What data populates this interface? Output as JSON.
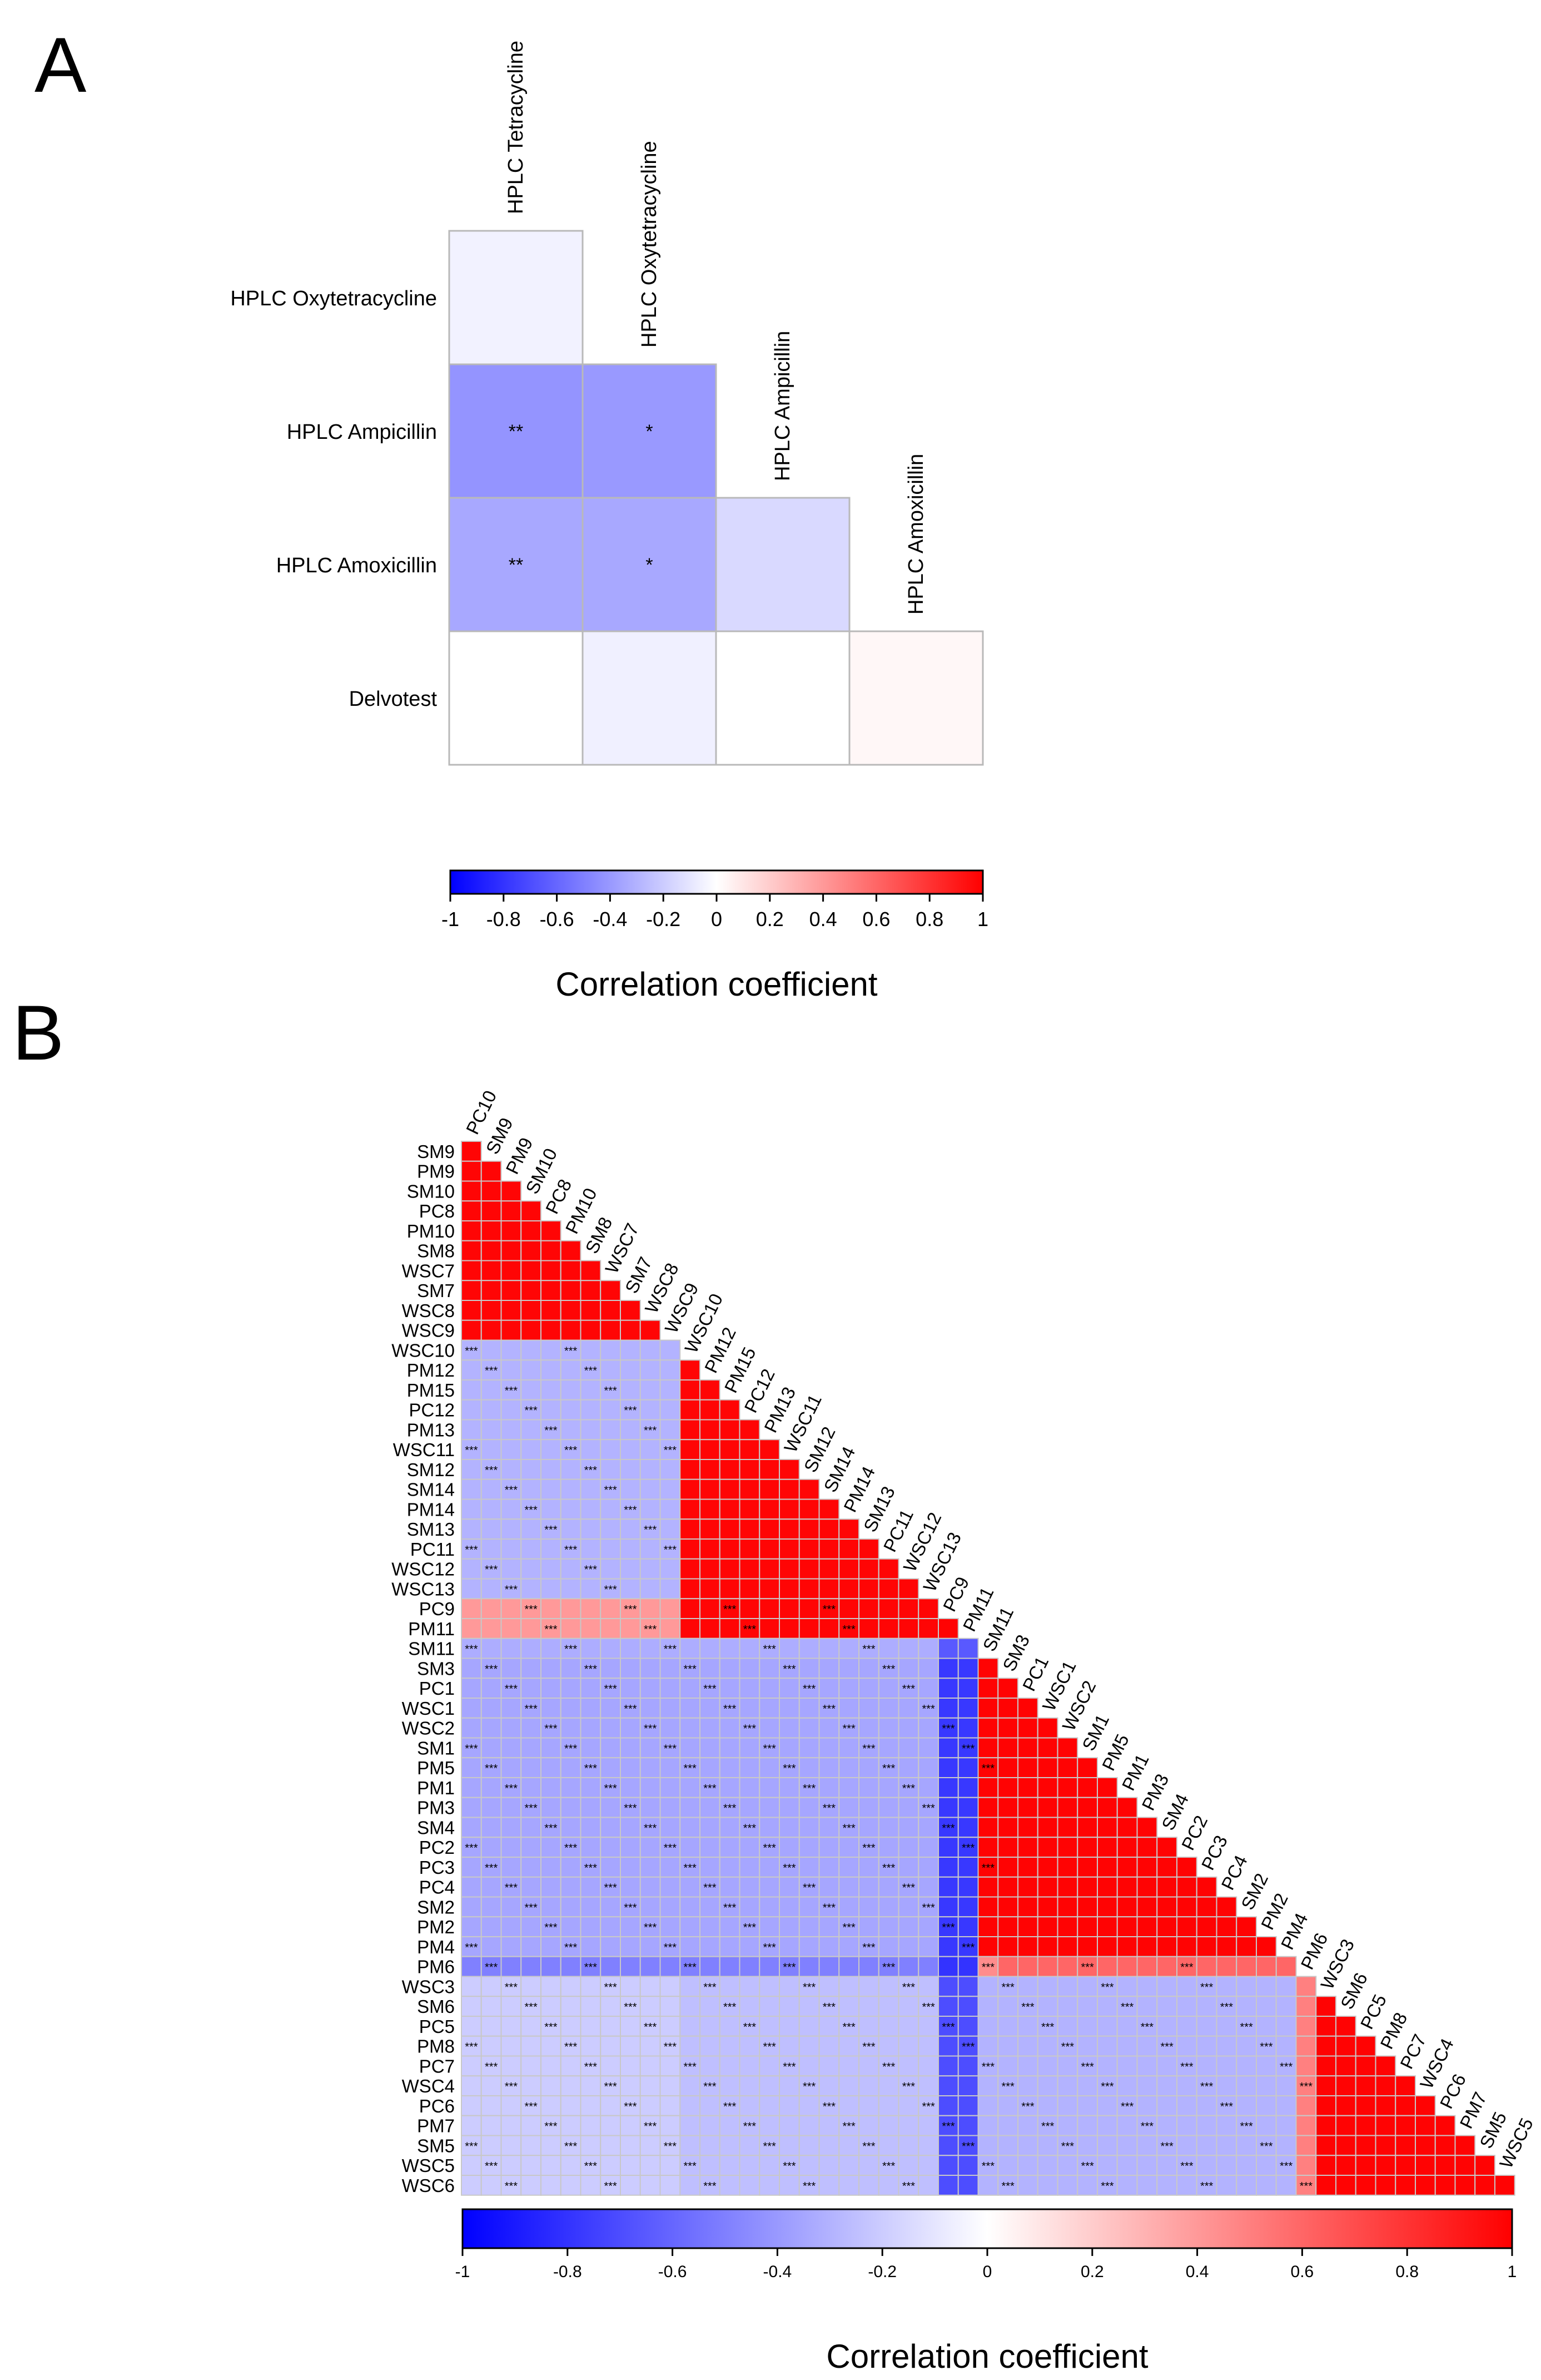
{
  "panels": {
    "a": {
      "letter": "A"
    },
    "b": {
      "letter": "B"
    }
  },
  "colors": {
    "negative": "#0000ff",
    "neutral": "#ffffff",
    "positive": "#ff0000",
    "grid": "#c8c8c8"
  },
  "chart_data": [
    {
      "type": "heatmap",
      "panel": "A",
      "title": "",
      "col_labels": [
        "HPLC Tetracycline",
        "HPLC Oxytetracycline",
        "HPLC Ampicillin",
        "HPLC Amoxicillin"
      ],
      "row_labels": [
        "HPLC Oxytetracycline",
        "HPLC Ampicillin",
        "HPLC Amoxicillin",
        "Delvotest"
      ],
      "values": [
        [
          -0.05,
          null,
          null,
          null
        ],
        [
          -0.42,
          -0.4,
          null,
          null
        ],
        [
          -0.34,
          -0.34,
          -0.15,
          null
        ],
        [
          0.0,
          -0.06,
          0.0,
          0.03
        ]
      ],
      "stars": [
        [
          "",
          "",
          "",
          ""
        ],
        [
          "**",
          "*",
          "",
          ""
        ],
        [
          "**",
          "*",
          "",
          ""
        ],
        [
          "",
          "",
          "",
          ""
        ]
      ],
      "colorbar": {
        "label": "Correlation coefficient",
        "ticks": [
          "-1",
          "-0.8",
          "-0.6",
          "-0.4",
          "-0.2",
          "0",
          "0.2",
          "0.4",
          "0.6",
          "0.8",
          "1"
        ],
        "range": [
          -1,
          1
        ]
      }
    },
    {
      "type": "heatmap",
      "panel": "B",
      "title": "",
      "diagonal_labels": [
        "PC10",
        "SM9",
        "PM9",
        "SM10",
        "PC8",
        "PM10",
        "SM8",
        "WSC7",
        "SM7",
        "WSC8",
        "WSC9",
        "WSC10",
        "PM12",
        "PM15",
        "PC12",
        "PM13",
        "WSC11",
        "SM12",
        "SM14",
        "PM14",
        "SM13",
        "PC11",
        "WSC12",
        "WSC13",
        "PC9",
        "PM11",
        "SM11",
        "SM3",
        "PC1",
        "WSC1",
        "WSC2",
        "SM1",
        "PM5",
        "PM1",
        "PM3",
        "SM4",
        "PC2",
        "PC3",
        "PC4",
        "SM2",
        "PM2",
        "PM4",
        "PM6",
        "WSC3",
        "SM6",
        "PC5",
        "PM8",
        "PC7",
        "WSC4",
        "PC6",
        "PM7",
        "SM5",
        "WSC5"
      ],
      "row_labels": [
        "SM9",
        "PM9",
        "SM10",
        "PC8",
        "PM10",
        "SM8",
        "WSC7",
        "SM7",
        "WSC8",
        "WSC9",
        "WSC10",
        "PM12",
        "PM15",
        "PC12",
        "PM13",
        "WSC11",
        "SM12",
        "SM14",
        "PM14",
        "SM13",
        "PC11",
        "WSC12",
        "WSC13",
        "PC9",
        "PM11",
        "SM11",
        "SM3",
        "PC1",
        "WSC1",
        "WSC2",
        "SM1",
        "PM5",
        "PM1",
        "PM3",
        "SM4",
        "PC2",
        "PC3",
        "PC4",
        "SM2",
        "PM2",
        "PM4",
        "PM6",
        "WSC3",
        "SM6",
        "PC5",
        "PM8",
        "PC7",
        "WSC4",
        "PC6",
        "PM7",
        "SM5",
        "WSC5",
        "WSC6"
      ],
      "cluster_bounds": [
        0,
        11,
        24,
        26,
        27,
        42,
        43,
        53
      ],
      "block_values": [
        [
          0.98
        ],
        [
          -0.3,
          0.98
        ],
        [
          0.4,
          0.98,
          0.99
        ],
        [
          -0.32,
          -0.32,
          -0.65,
          0.99
        ],
        [
          -0.35,
          -0.35,
          -0.78,
          0.99,
          0.99
        ],
        [
          -0.5,
          -0.5,
          -0.8,
          0.45,
          0.6,
          0.99
        ],
        [
          -0.2,
          -0.25,
          -0.7,
          -0.3,
          -0.3,
          0.5,
          0.99
        ]
      ],
      "stars_note": "significance stars (*, **, ***) marked in a subset of cells",
      "colorbar": {
        "label": "Correlation coefficient",
        "ticks": [
          "-1",
          "-0.8",
          "-0.6",
          "-0.4",
          "-0.2",
          "0",
          "0.2",
          "0.4",
          "0.6",
          "0.8",
          "1"
        ],
        "range": [
          -1,
          1
        ]
      }
    }
  ]
}
